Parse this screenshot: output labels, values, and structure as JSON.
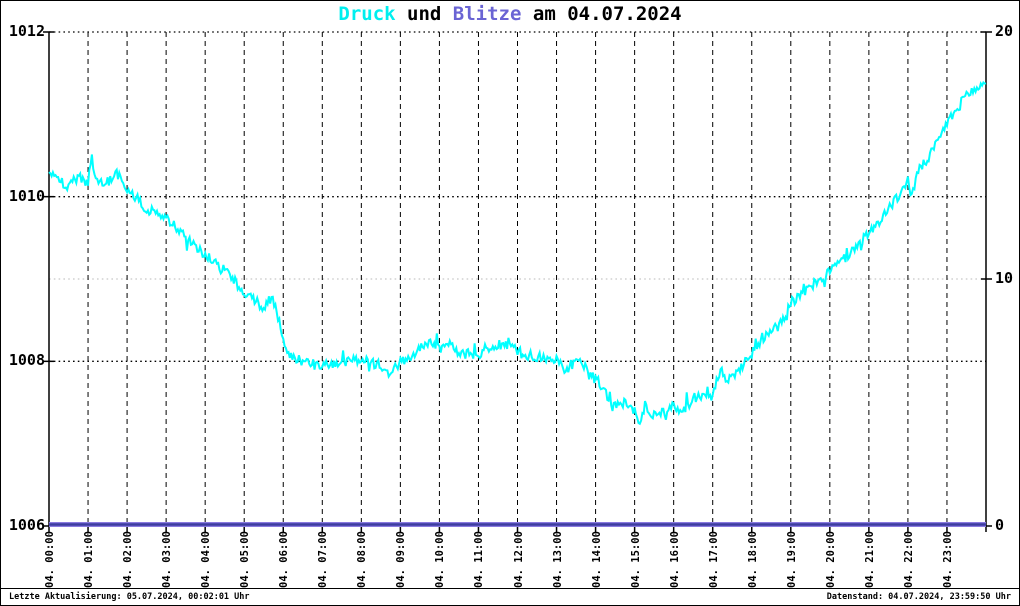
{
  "title": {
    "segments": [
      {
        "text": "Druck",
        "color": "#00efef"
      },
      {
        "text": " und ",
        "color": "#000000"
      },
      {
        "text": "Blitze",
        "color": "#6a64d4"
      },
      {
        "text": " am 04.07.2024",
        "color": "#000000"
      }
    ]
  },
  "footer": {
    "left": "Letzte Aktualisierung: 05.07.2024, 00:02:01 Uhr",
    "right": "Datenstand: 04.07.2024, 23:59:50 Uhr"
  },
  "chart_data": {
    "type": "line",
    "title": "Druck und Blitze am 04.07.2024",
    "x_axis": {
      "unit": "time",
      "start_minute": 0,
      "end_minute": 1440,
      "tick_interval_minutes": 60,
      "tick_labels": [
        "04. 00:00",
        "04. 01:00",
        "04. 02:00",
        "04. 03:00",
        "04. 04:00",
        "04. 05:00",
        "04. 06:00",
        "04. 07:00",
        "04. 08:00",
        "04. 09:00",
        "04. 10:00",
        "04. 11:00",
        "04. 12:00",
        "04. 13:00",
        "04. 14:00",
        "04. 15:00",
        "04. 16:00",
        "04. 17:00",
        "04. 18:00",
        "04. 19:00",
        "04. 20:00",
        "04. 21:00",
        "04. 22:00",
        "04. 23:00"
      ]
    },
    "y_axis_left": {
      "unit": "hPa",
      "range": [
        1006,
        1012
      ],
      "ticks": [
        1006,
        1008,
        1010,
        1012
      ],
      "dotted_gridlines": [
        1008,
        1010,
        1012
      ],
      "gridline_color": "#000000"
    },
    "y_axis_right": {
      "unit": "count",
      "range": [
        0,
        20
      ],
      "ticks": [
        0,
        10,
        20
      ],
      "gray_dotted_gridline_at": 10,
      "gray_gridline_color": "#c8c8c8"
    },
    "grid": {
      "vertical_hourly_dashed": true,
      "vertical_color": "#000000"
    },
    "series": [
      {
        "name": "Druck",
        "unit": "hPa",
        "axis": "left",
        "color": "#00ffff",
        "noise_amplitude": 0.06,
        "anchor_points_min_hpa": [
          [
            0,
            1010.3
          ],
          [
            15,
            1010.2
          ],
          [
            30,
            1010.1
          ],
          [
            45,
            1010.25
          ],
          [
            60,
            1010.15
          ],
          [
            65,
            1010.5
          ],
          [
            72,
            1010.2
          ],
          [
            90,
            1010.18
          ],
          [
            105,
            1010.28
          ],
          [
            120,
            1010.1
          ],
          [
            150,
            1009.85
          ],
          [
            180,
            1009.75
          ],
          [
            210,
            1009.5
          ],
          [
            240,
            1009.3
          ],
          [
            270,
            1009.1
          ],
          [
            300,
            1008.85
          ],
          [
            330,
            1008.65
          ],
          [
            342,
            1008.78
          ],
          [
            352,
            1008.55
          ],
          [
            365,
            1008.1
          ],
          [
            390,
            1008.0
          ],
          [
            420,
            1007.95
          ],
          [
            450,
            1008.0
          ],
          [
            480,
            1008.02
          ],
          [
            510,
            1007.95
          ],
          [
            525,
            1007.88
          ],
          [
            540,
            1007.98
          ],
          [
            570,
            1008.15
          ],
          [
            585,
            1008.25
          ],
          [
            600,
            1008.15
          ],
          [
            615,
            1008.25
          ],
          [
            630,
            1008.1
          ],
          [
            660,
            1008.08
          ],
          [
            690,
            1008.15
          ],
          [
            705,
            1008.25
          ],
          [
            720,
            1008.1
          ],
          [
            750,
            1008.05
          ],
          [
            780,
            1008.02
          ],
          [
            795,
            1007.85
          ],
          [
            810,
            1008.0
          ],
          [
            825,
            1007.95
          ],
          [
            840,
            1007.82
          ],
          [
            855,
            1007.62
          ],
          [
            870,
            1007.45
          ],
          [
            885,
            1007.5
          ],
          [
            900,
            1007.4
          ],
          [
            908,
            1007.22
          ],
          [
            915,
            1007.45
          ],
          [
            930,
            1007.35
          ],
          [
            945,
            1007.4
          ],
          [
            960,
            1007.45
          ],
          [
            975,
            1007.4
          ],
          [
            990,
            1007.55
          ],
          [
            1005,
            1007.6
          ],
          [
            1020,
            1007.62
          ],
          [
            1032,
            1007.9
          ],
          [
            1040,
            1007.75
          ],
          [
            1050,
            1007.8
          ],
          [
            1065,
            1007.95
          ],
          [
            1080,
            1008.1
          ],
          [
            1095,
            1008.25
          ],
          [
            1110,
            1008.4
          ],
          [
            1125,
            1008.5
          ],
          [
            1140,
            1008.7
          ],
          [
            1155,
            1008.8
          ],
          [
            1170,
            1008.9
          ],
          [
            1185,
            1009.0
          ],
          [
            1200,
            1009.1
          ],
          [
            1215,
            1009.2
          ],
          [
            1230,
            1009.3
          ],
          [
            1245,
            1009.45
          ],
          [
            1260,
            1009.55
          ],
          [
            1275,
            1009.7
          ],
          [
            1290,
            1009.85
          ],
          [
            1305,
            1010.0
          ],
          [
            1320,
            1010.2
          ],
          [
            1326,
            1010.0
          ],
          [
            1335,
            1010.3
          ],
          [
            1350,
            1010.45
          ],
          [
            1365,
            1010.65
          ],
          [
            1380,
            1010.9
          ],
          [
            1395,
            1011.05
          ],
          [
            1410,
            1011.25
          ],
          [
            1425,
            1011.3
          ],
          [
            1440,
            1011.4
          ]
        ]
      },
      {
        "name": "Blitze",
        "unit": "count",
        "axis": "right",
        "color": "#3d3da0",
        "halo_color": "#8a7ae0",
        "constant_value": 0
      }
    ]
  }
}
